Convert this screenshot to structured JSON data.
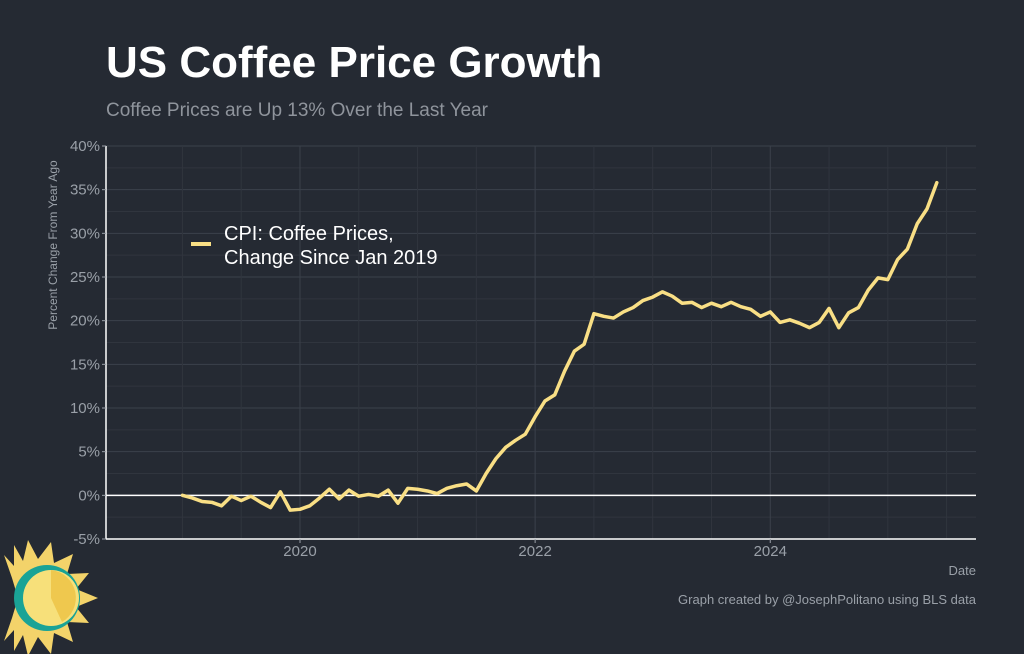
{
  "chart_data": {
    "type": "line",
    "title": "US Coffee Price Growth",
    "subtitle": "Coffee Prices are Up 13% Over the Last Year",
    "ylabel": "Percent Change From Year Ago",
    "xlabel": "Date",
    "ylim": [
      -5,
      40
    ],
    "yticks": [
      -5,
      0,
      5,
      10,
      15,
      20,
      25,
      30,
      35,
      40
    ],
    "ytick_labels": [
      "-5%",
      "0%",
      "5%",
      "10%",
      "15%",
      "20%",
      "25%",
      "30%",
      "35%",
      "40%"
    ],
    "xlim": [
      2018.35,
      2025.75
    ],
    "xticks": [
      2020,
      2022,
      2024
    ],
    "xtick_labels": [
      "2020",
      "2022",
      "2024"
    ],
    "grid": true,
    "legend_position": "top-left",
    "series": [
      {
        "name": "CPI: Coffee Prices, Change Since Jan 2019",
        "legend_lines": [
          "CPI: Coffee Prices,",
          "Change Since Jan 2019"
        ],
        "color": "#f9df85",
        "start": 2019.0,
        "step_months": 1,
        "values": [
          0.0,
          -0.3,
          -0.7,
          -0.8,
          -1.2,
          -0.1,
          -0.6,
          -0.1,
          -0.8,
          -1.4,
          0.4,
          -1.7,
          -1.6,
          -1.2,
          -0.3,
          0.7,
          -0.4,
          0.6,
          -0.1,
          0.1,
          -0.1,
          0.6,
          -0.9,
          0.8,
          0.7,
          0.5,
          0.2,
          0.8,
          1.1,
          1.3,
          0.5,
          2.5,
          4.2,
          5.5,
          6.3,
          7.0,
          9.0,
          10.8,
          11.5,
          14.2,
          16.5,
          17.3,
          20.8,
          20.5,
          20.3,
          21.0,
          21.5,
          22.3,
          22.7,
          23.3,
          22.8,
          22.0,
          22.1,
          21.5,
          22.0,
          21.6,
          22.1,
          21.6,
          21.3,
          20.5,
          21.0,
          19.8,
          20.1,
          19.7,
          19.2,
          19.8,
          21.4,
          19.2,
          20.9,
          21.5,
          23.5,
          24.9,
          24.7,
          27.0,
          28.2,
          31.1,
          32.8,
          35.8
        ]
      }
    ]
  },
  "footer": {
    "credit": "Graph created by @JosephPolitano using BLS data"
  },
  "logo": {
    "name": "sun-logo"
  }
}
